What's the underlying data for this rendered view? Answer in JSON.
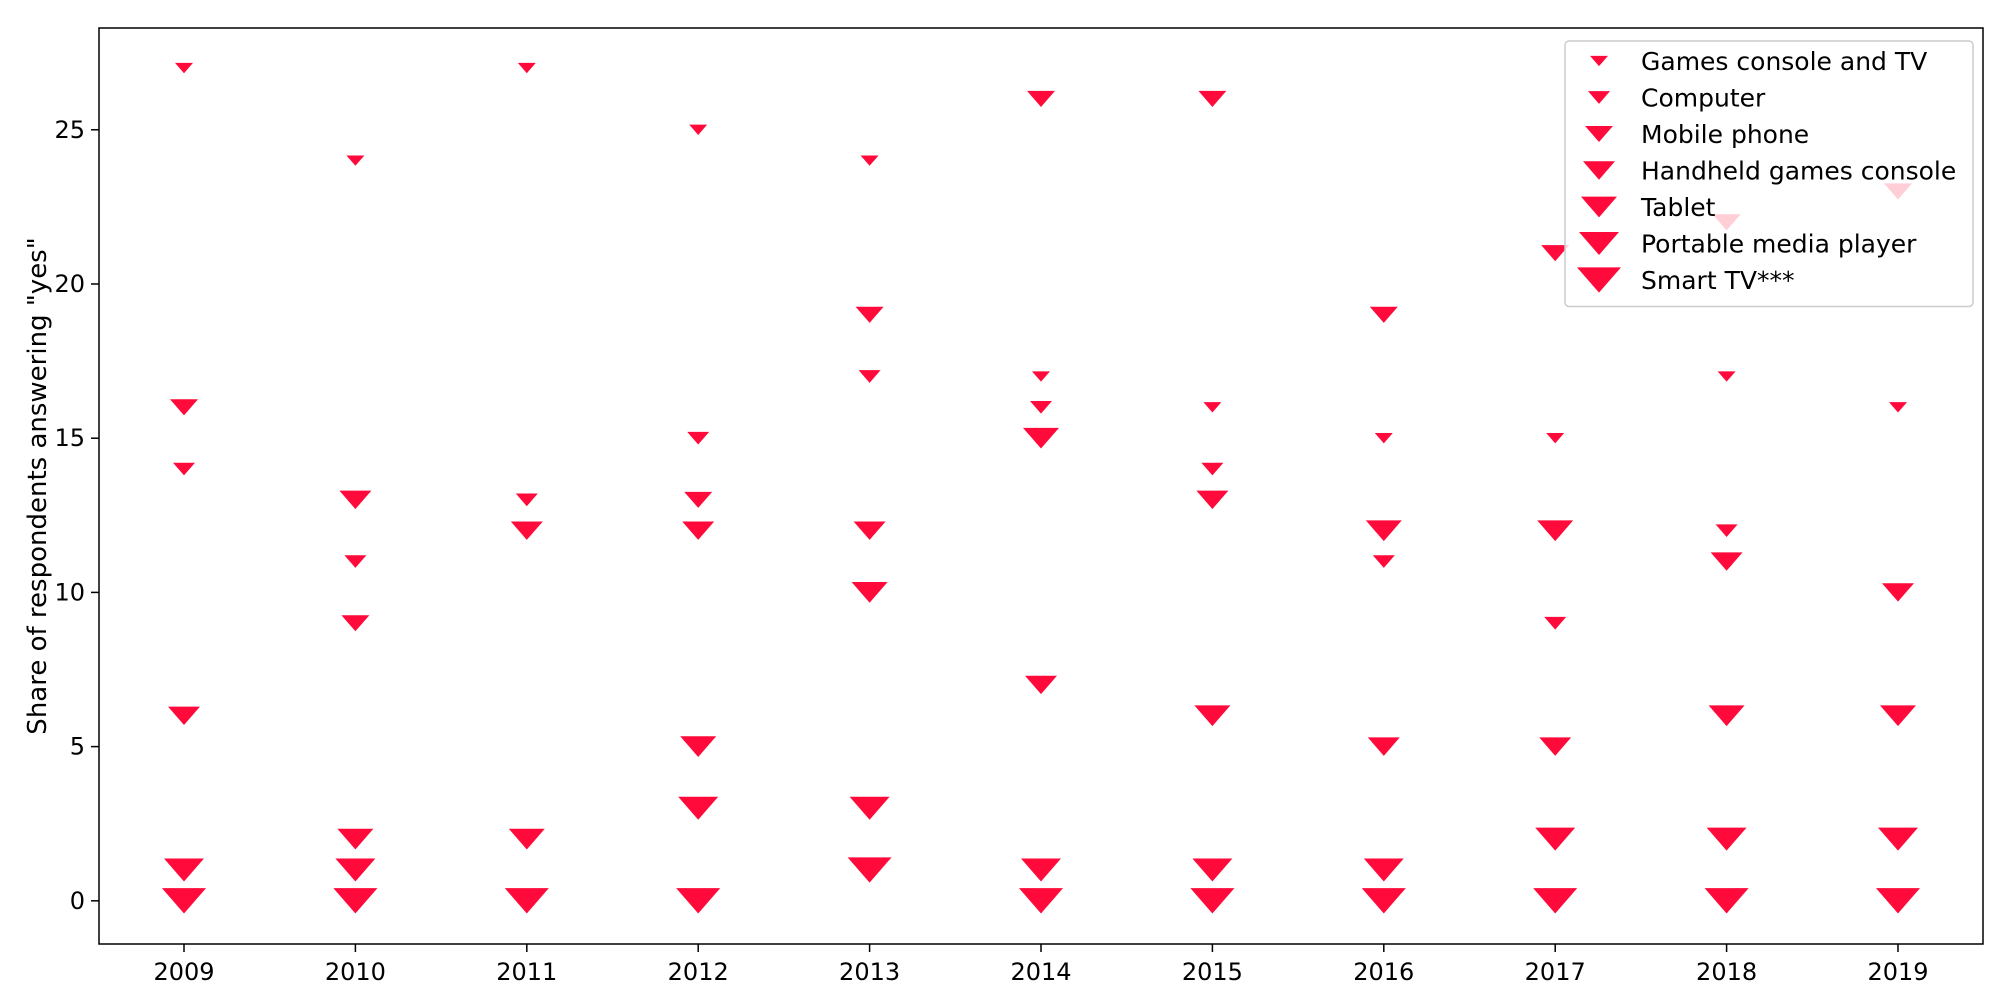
{
  "chart_data": {
    "type": "scatter",
    "title": "",
    "xlabel": "",
    "ylabel": "Share of respondents answering \"yes\"",
    "x": [
      "2009",
      "2010",
      "2011",
      "2012",
      "2013",
      "2014",
      "2015",
      "2016",
      "2017",
      "2018",
      "2019"
    ],
    "x_ticks": [
      "2009",
      "2010",
      "2011",
      "2012",
      "2013",
      "2014",
      "2015",
      "2016",
      "2017",
      "2018",
      "2019"
    ],
    "y_ticks": [
      "0",
      "5",
      "10",
      "15",
      "20",
      "25"
    ],
    "ylim": [
      -1.4,
      28.3
    ],
    "grid": false,
    "legend_position": "top-right",
    "marker": "triangle-down",
    "color": "#ff0a3a",
    "series": [
      {
        "name": "Games console and TV",
        "values": [
          27,
          24,
          27,
          25,
          24,
          17,
          16,
          15,
          15,
          17,
          16
        ]
      },
      {
        "name": "Computer",
        "values": [
          14,
          11,
          13,
          15,
          17,
          16,
          14,
          11,
          9,
          12,
          null
        ]
      },
      {
        "name": "Mobile phone",
        "values": [
          16,
          9,
          12,
          13,
          19,
          26,
          26,
          19,
          21,
          22,
          23
        ]
      },
      {
        "name": "Handheld games console",
        "values": [
          6,
          13,
          12,
          12,
          12,
          7,
          13,
          5,
          5,
          11,
          10
        ]
      },
      {
        "name": "Tablet",
        "values": [
          null,
          2,
          2,
          5,
          10,
          15,
          6,
          12,
          12,
          6,
          6
        ]
      },
      {
        "name": "Portable media player",
        "values": [
          1,
          1,
          null,
          3,
          3,
          1,
          1,
          1,
          2,
          2,
          2
        ]
      },
      {
        "name": "Smart TV***",
        "values": [
          0,
          0,
          0,
          0,
          1,
          0,
          0,
          0,
          0,
          0,
          0
        ]
      }
    ]
  }
}
